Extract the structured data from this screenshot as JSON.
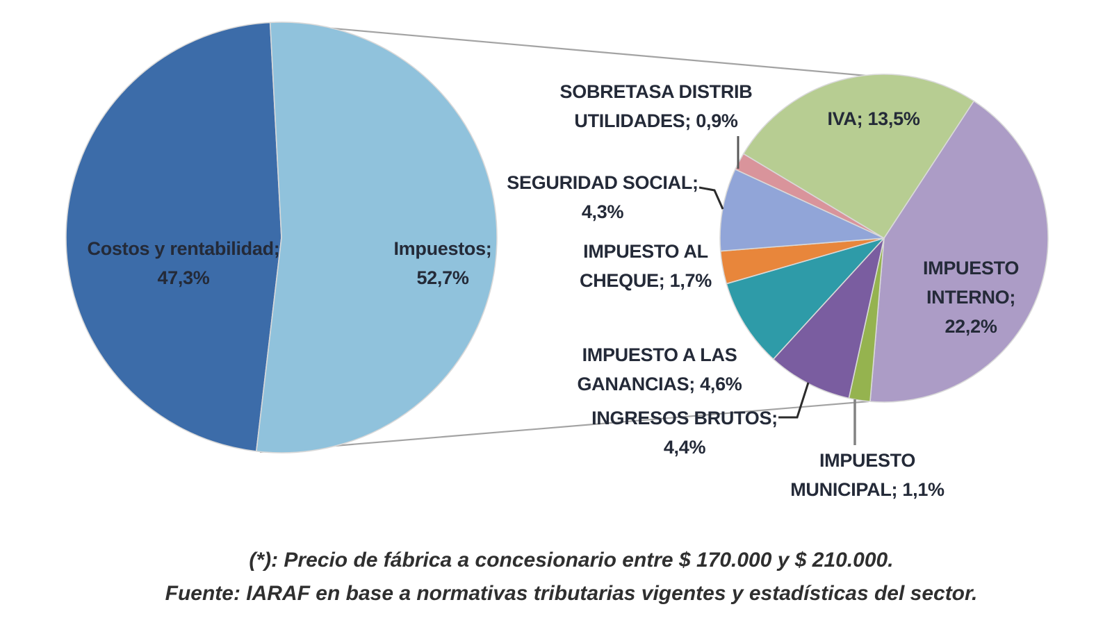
{
  "chart_data": {
    "type": "pie",
    "subtype": "pie-of-pie",
    "title": "",
    "legend": "none",
    "data_label_format": "name; value% (decimal comma)",
    "main_pie": {
      "start_angle_deg": 186.7,
      "slices": [
        {
          "key": "costos",
          "label": "Costos y rentabilidad",
          "value_pct": 47.3,
          "display": "Costos y rentabilidad;\n47,3%",
          "color": "#3C6CA9"
        },
        {
          "key": "impuestos",
          "label": "Impuestos",
          "value_pct": 52.7,
          "display": "Impuestos;\n52,7%",
          "color": "#90C2DC"
        }
      ]
    },
    "secondary_pie": {
      "represents": "Breakdown of Impuestos (52,7%)",
      "start_angle_deg": -59,
      "slices": [
        {
          "key": "iva",
          "label": "IVA",
          "value_pct": 13.5,
          "display": "IVA; 13,5%",
          "color": "#B7CD92"
        },
        {
          "key": "impuesto-interno",
          "label": "IMPUESTO INTERNO",
          "value_pct": 22.2,
          "display": "IMPUESTO\nINTERNO;\n22,2%",
          "color": "#AC9CC6"
        },
        {
          "key": "impuesto-municipal",
          "label": "IMPUESTO MUNICIPAL",
          "value_pct": 1.1,
          "display": "IMPUESTO\nMUNICIPAL; 1,1%",
          "color": "#95B34F"
        },
        {
          "key": "ingresos-brutos",
          "label": "INGRESOS BRUTOS",
          "value_pct": 4.4,
          "display": "INGRESOS BRUTOS;\n4,4%",
          "color": "#7A5DA0"
        },
        {
          "key": "impuesto-ganancias",
          "label": "IMPUESTO A LAS GANANCIAS",
          "value_pct": 4.6,
          "display": "IMPUESTO A LAS\nGANANCIAS; 4,6%",
          "color": "#2E9BA8"
        },
        {
          "key": "impuesto-cheque",
          "label": "IMPUESTO AL CHEQUE",
          "value_pct": 1.7,
          "display": "IMPUESTO AL\nCHEQUE; 1,7%",
          "color": "#E8863B"
        },
        {
          "key": "seguridad-social",
          "label": "SEGURIDAD SOCIAL",
          "value_pct": 4.3,
          "display": "SEGURIDAD SOCIAL;\n4,3%",
          "color": "#91A5D8"
        },
        {
          "key": "sobretasa-distrib-utilidades",
          "label": "SOBRETASA DISTRIB UTILIDADES",
          "value_pct": 0.9,
          "display": "SOBRETASA DISTRIB\nUTILIDADES; 0,9%",
          "color": "#D9949B"
        }
      ]
    },
    "footnotes": {
      "line1": "(*): Precio de fábrica a concesionario entre $ 170.000 y $ 210.000.",
      "line2": "Fuente: IARAF en base a normativas tributarias vigentes y estadísticas del sector."
    }
  }
}
